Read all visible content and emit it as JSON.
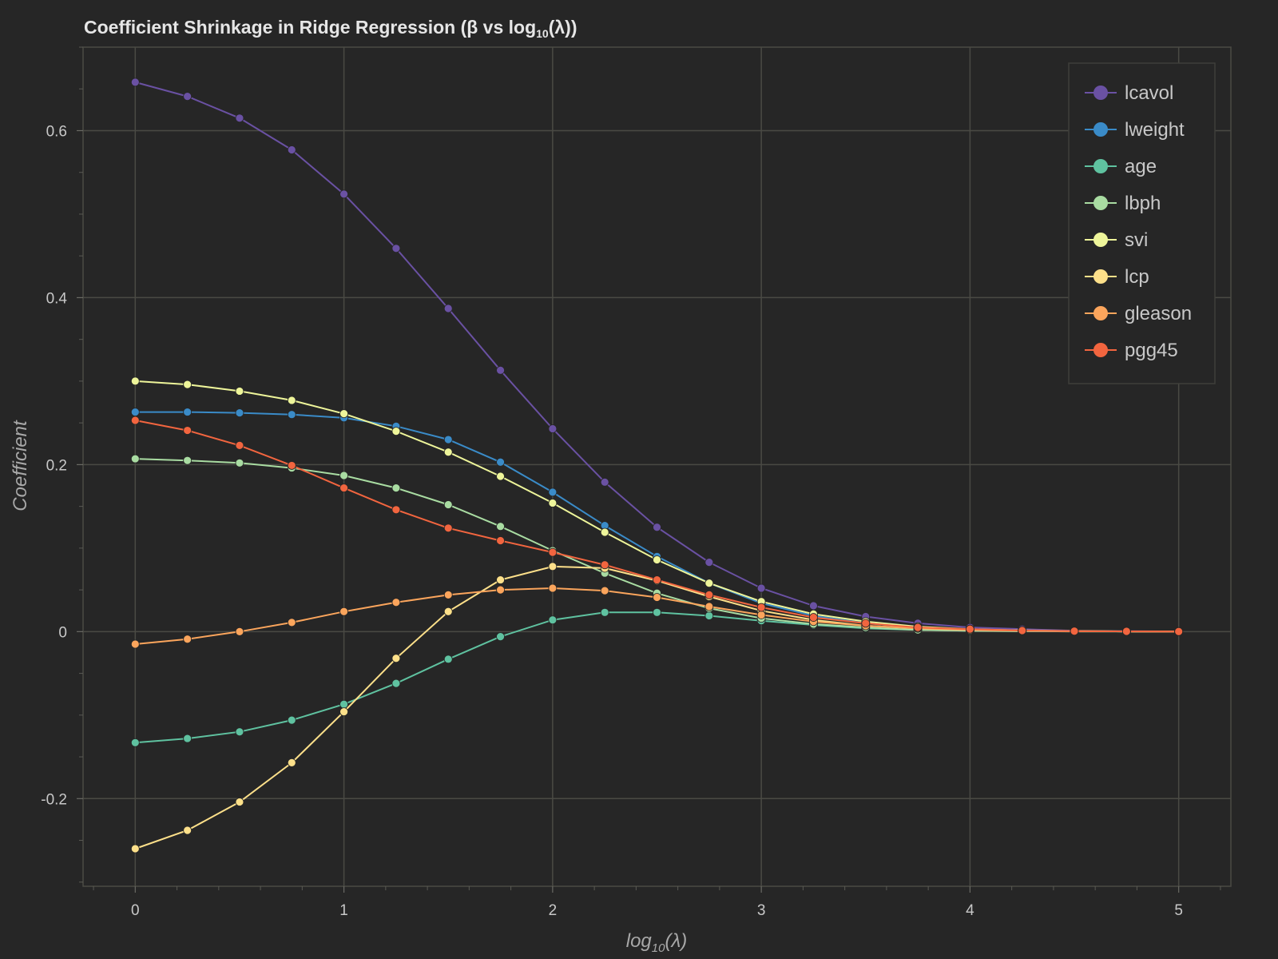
{
  "chart_data": {
    "type": "line",
    "title": "Coefficient Shrinkage in Ridge Regression (β vs log",
    "title_sub": "10",
    "title_end": "(λ))",
    "xlabel": "log",
    "xlabel_sub": "10",
    "xlabel_end": "(λ)",
    "ylabel": "Coefficient",
    "xlim": [
      -0.25,
      5.25
    ],
    "ylim": [
      -0.305,
      0.7
    ],
    "xticks": [
      0,
      1,
      2,
      3,
      4,
      5
    ],
    "xtick_labels": [
      "0",
      "1",
      "2",
      "3",
      "4",
      "5"
    ],
    "yticks": [
      -0.2,
      0,
      0.2,
      0.4,
      0.6
    ],
    "ytick_labels": [
      "-0.2",
      "0",
      "0.2",
      "0.4",
      "0.6"
    ],
    "grid": true,
    "legend_position": "top-right",
    "x": [
      0,
      0.25,
      0.5,
      0.75,
      1,
      1.25,
      1.5,
      1.75,
      2,
      2.25,
      2.5,
      2.75,
      3,
      3.25,
      3.5,
      3.75,
      4,
      4.25,
      4.5,
      4.75,
      5
    ],
    "series": [
      {
        "name": "lcavol",
        "color": "#6a51a3",
        "values": [
          0.658,
          0.641,
          0.615,
          0.577,
          0.524,
          0.459,
          0.387,
          0.313,
          0.243,
          0.179,
          0.125,
          0.083,
          0.052,
          0.031,
          0.018,
          0.01,
          0.005,
          0.003,
          0.001,
          0.0005,
          0.0002
        ]
      },
      {
        "name": "lweight",
        "color": "#3a8bc8",
        "values": [
          0.263,
          0.263,
          0.262,
          0.26,
          0.256,
          0.246,
          0.23,
          0.203,
          0.167,
          0.127,
          0.09,
          0.058,
          0.034,
          0.019,
          0.01,
          0.005,
          0.002,
          0.001,
          0.0005,
          0.0002,
          0.0001
        ]
      },
      {
        "name": "age",
        "color": "#5fc2a0",
        "values": [
          -0.133,
          -0.128,
          -0.12,
          -0.106,
          -0.087,
          -0.062,
          -0.033,
          -0.006,
          0.014,
          0.023,
          0.023,
          0.019,
          0.013,
          0.008,
          0.004,
          0.002,
          0.001,
          0.0005,
          0.0002,
          0.0001,
          0.0
        ]
      },
      {
        "name": "lbph",
        "color": "#a9dca2",
        "values": [
          0.207,
          0.205,
          0.202,
          0.196,
          0.187,
          0.172,
          0.152,
          0.126,
          0.097,
          0.07,
          0.046,
          0.028,
          0.016,
          0.009,
          0.005,
          0.002,
          0.001,
          0.0005,
          0.0002,
          0.0001,
          0.0
        ]
      },
      {
        "name": "svi",
        "color": "#eef59a",
        "values": [
          0.3,
          0.296,
          0.288,
          0.277,
          0.261,
          0.24,
          0.215,
          0.186,
          0.154,
          0.119,
          0.086,
          0.058,
          0.036,
          0.021,
          0.012,
          0.006,
          0.003,
          0.0015,
          0.0007,
          0.0003,
          0.0001
        ]
      },
      {
        "name": "lcp",
        "color": "#fde08a",
        "values": [
          -0.26,
          -0.238,
          -0.204,
          -0.157,
          -0.096,
          -0.032,
          0.024,
          0.062,
          0.078,
          0.076,
          0.061,
          0.042,
          0.025,
          0.014,
          0.007,
          0.004,
          0.002,
          0.001,
          0.0004,
          0.0002,
          0.0001
        ]
      },
      {
        "name": "gleason",
        "color": "#fba55c",
        "values": [
          -0.015,
          -0.009,
          0.0,
          0.011,
          0.024,
          0.035,
          0.044,
          0.05,
          0.052,
          0.049,
          0.041,
          0.03,
          0.02,
          0.012,
          0.007,
          0.004,
          0.002,
          0.001,
          0.0004,
          0.0002,
          0.0001
        ]
      },
      {
        "name": "pgg45",
        "color": "#f2653f",
        "values": [
          0.253,
          0.241,
          0.223,
          0.199,
          0.172,
          0.146,
          0.124,
          0.109,
          0.095,
          0.08,
          0.062,
          0.044,
          0.029,
          0.017,
          0.01,
          0.005,
          0.003,
          0.0013,
          0.0006,
          0.0003,
          0.0001
        ]
      }
    ]
  }
}
